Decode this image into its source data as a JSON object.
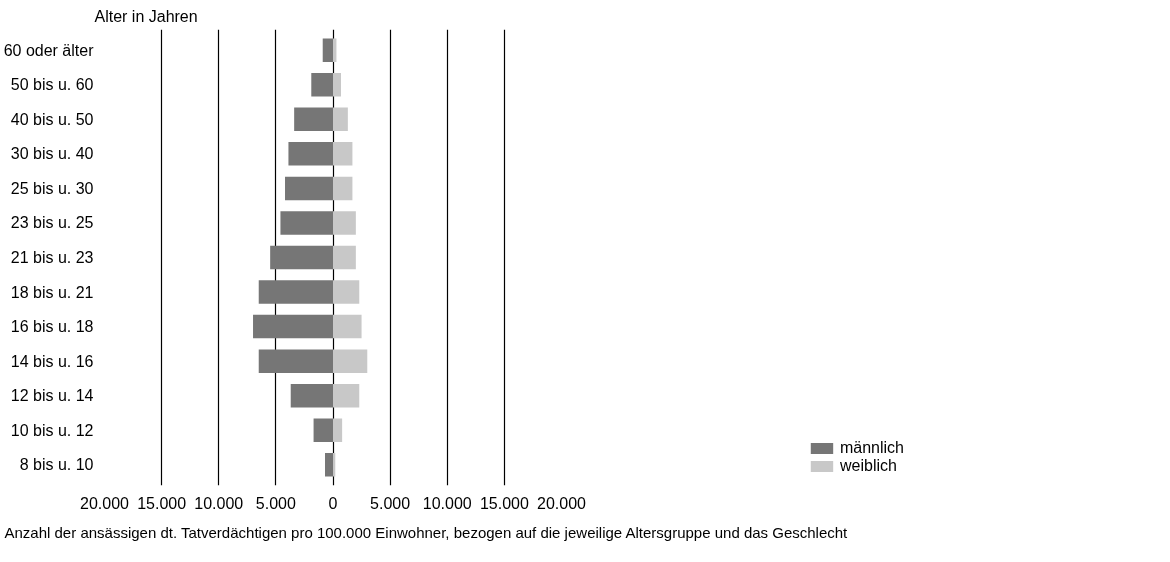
{
  "chart_data": {
    "type": "bar",
    "orientation": "horizontal",
    "stacked": true,
    "ylabel": "Alter in Jahren",
    "xlabel": "Anzahl der ansässigen dt. Tatverdächtigen pro 100.000 Einwohner, bezogen auf die jeweilige Altersgruppe und das Geschlecht",
    "categories": [
      "60 oder älter",
      "50 bis u. 60",
      "40 bis u. 50",
      "30 bis u. 40",
      "25 bis u. 30",
      "23 bis u. 25",
      "21 bis u. 23",
      "18 bis u. 21",
      "16 bis u. 18",
      "14 bis u. 16",
      "12 bis u. 14",
      "10 bis u. 12",
      "8 bis u. 10"
    ],
    "series": [
      {
        "name": "männlich",
        "color": "#767676",
        "values": [
          -900,
          -1900,
          -3400,
          -3900,
          -4200,
          -4600,
          -5500,
          -6500,
          -7000,
          -6500,
          -3700,
          -1700,
          -700
        ]
      },
      {
        "name": "weiblich",
        "color": "#c8c8c8",
        "values": [
          300,
          700,
          1300,
          1700,
          1700,
          2000,
          2000,
          2300,
          2500,
          3000,
          2300,
          800,
          200
        ]
      }
    ],
    "xlim": [
      -20000,
      20000
    ],
    "xticks": [
      {
        "value": -20000,
        "label": "20.000"
      },
      {
        "value": -15000,
        "label": "15.000"
      },
      {
        "value": -10000,
        "label": "10.000"
      },
      {
        "value": -5000,
        "label": "5.000"
      },
      0,
      {
        "value": 5000,
        "label": "5.000"
      },
      {
        "value": 10000,
        "label": "10.000"
      },
      {
        "value": 15000,
        "label": "15.000"
      },
      {
        "value": 20000,
        "label": "20.000"
      }
    ],
    "grid": "x",
    "legend": "bottom right"
  }
}
